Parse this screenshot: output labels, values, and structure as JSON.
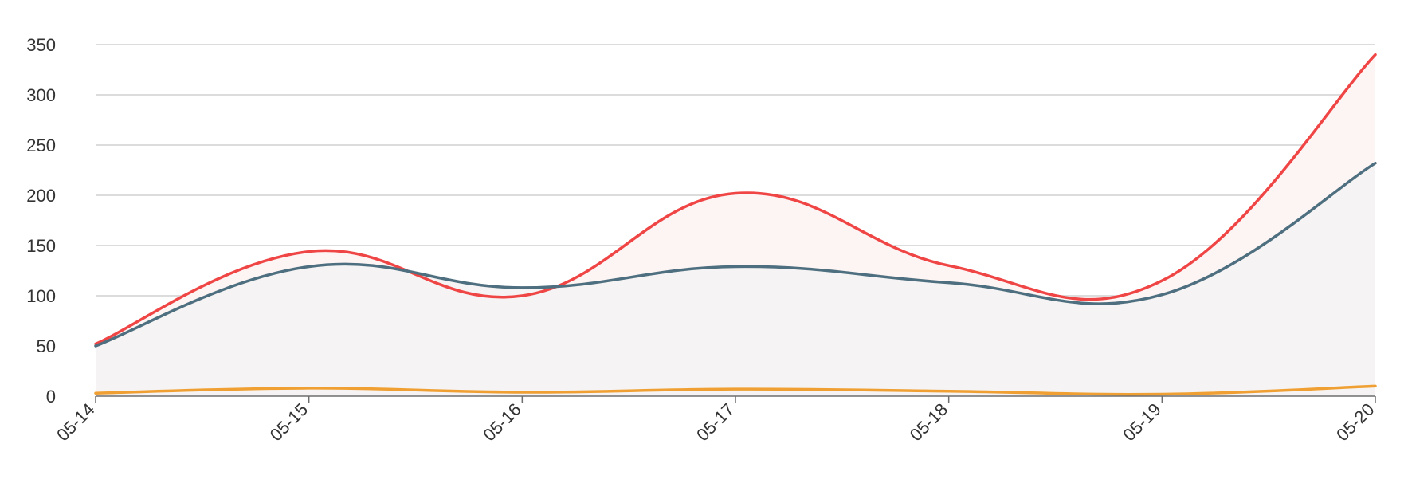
{
  "chart_data": {
    "type": "line",
    "categories": [
      "05-14",
      "05-15",
      "05-16",
      "05-17",
      "05-18",
      "05-19",
      "05-20"
    ],
    "series": [
      {
        "values": [
          52,
          144,
          100,
          202,
          130,
          115,
          340
        ],
        "color": "#f04545",
        "area_fill": "#fdf4f4"
      },
      {
        "values": [
          50,
          129,
          108,
          129,
          113,
          101,
          232
        ],
        "color": "#4e6f7f",
        "area_fill": "#f5f3f3"
      },
      {
        "values": [
          3,
          8,
          4,
          7,
          5,
          2,
          10
        ],
        "color": "#f0a032",
        "area_fill": ""
      }
    ],
    "ylim": [
      0,
      350
    ],
    "yticks": [
      0,
      50,
      100,
      150,
      200,
      250,
      300,
      350
    ],
    "grid": true,
    "xlabel": "",
    "ylabel": ""
  }
}
